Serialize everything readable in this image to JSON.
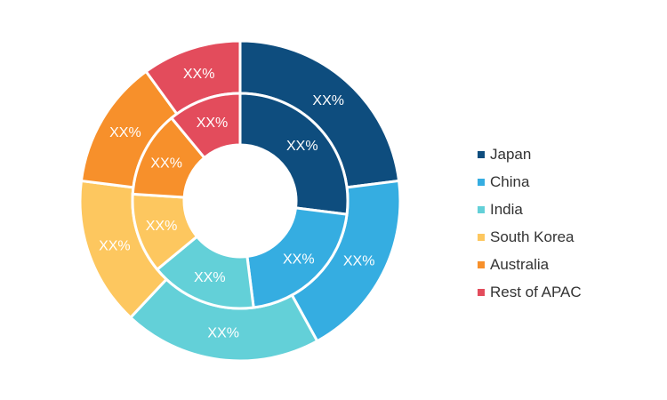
{
  "chart_data": {
    "type": "pie",
    "variant": "nested-donut",
    "title": "",
    "legend_position": "right",
    "series": [
      {
        "ring": "inner",
        "values": [
          27,
          21,
          16,
          12,
          13,
          11
        ],
        "labels": [
          "XX%",
          "XX%",
          "XX%",
          "XX%",
          "XX%",
          "XX%"
        ]
      },
      {
        "ring": "outer",
        "values": [
          23,
          19,
          20,
          15,
          13,
          10
        ],
        "labels": [
          "XX%",
          "XX%",
          "XX%",
          "XX%",
          "XX%",
          "XX%"
        ]
      }
    ],
    "categories": [
      {
        "name": "Japan",
        "color": "#0e4d7e"
      },
      {
        "name": "China",
        "color": "#35ade1"
      },
      {
        "name": "India",
        "color": "#63d0d8"
      },
      {
        "name": "South Korea",
        "color": "#fdc75f"
      },
      {
        "name": "Australia",
        "color": "#f7902b"
      },
      {
        "name": "Rest of APAC",
        "color": "#e34c5c"
      }
    ]
  }
}
